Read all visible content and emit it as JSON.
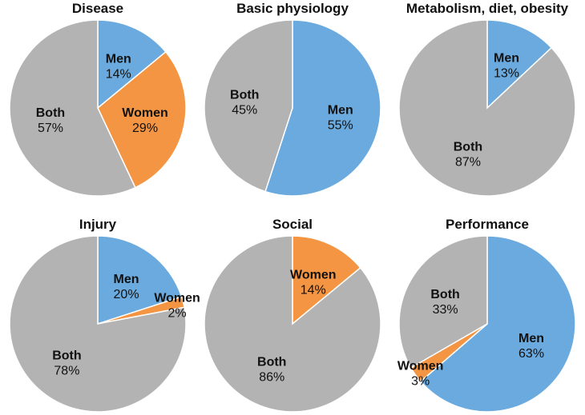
{
  "chart_data": [
    {
      "type": "pie",
      "title": "Disease",
      "slices": [
        {
          "label": "Men",
          "value": 14
        },
        {
          "label": "Women",
          "value": 29
        },
        {
          "label": "Both",
          "value": 57
        }
      ]
    },
    {
      "type": "pie",
      "title": "Basic physiology",
      "slices": [
        {
          "label": "Men",
          "value": 55
        },
        {
          "label": "Both",
          "value": 45
        }
      ]
    },
    {
      "type": "pie",
      "title": "Metabolism, diet, obesity",
      "slices": [
        {
          "label": "Men",
          "value": 13
        },
        {
          "label": "Both",
          "value": 87
        }
      ]
    },
    {
      "type": "pie",
      "title": "Injury",
      "slices": [
        {
          "label": "Men",
          "value": 20
        },
        {
          "label": "Women",
          "value": 2
        },
        {
          "label": "Both",
          "value": 78
        }
      ]
    },
    {
      "type": "pie",
      "title": "Social",
      "slices": [
        {
          "label": "Women",
          "value": 14
        },
        {
          "label": "Both",
          "value": 86
        }
      ]
    },
    {
      "type": "pie",
      "title": "Performance",
      "slices": [
        {
          "label": "Men",
          "value": 63
        },
        {
          "label": "Women",
          "value": 3
        },
        {
          "label": "Both",
          "value": 33
        }
      ]
    }
  ],
  "colors": {
    "Men": "#6aaade",
    "Women": "#f39542",
    "Both": "#b3b3b3"
  }
}
